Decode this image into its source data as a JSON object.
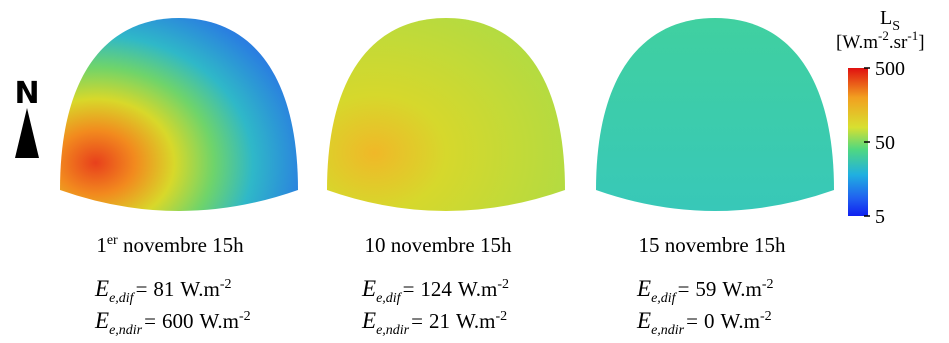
{
  "compass": "N",
  "colorbar": {
    "symbol": "L",
    "symbol_subscript": "S",
    "unit_open": "[W.m",
    "unit_exp1": "-2",
    "unit_mid": ".sr",
    "unit_exp2": "-1",
    "unit_close": "]",
    "log_scale": true,
    "lim": [
      5,
      500
    ],
    "ticks": [
      5,
      50,
      500
    ]
  },
  "panels": [
    {
      "caption_number": "1",
      "caption_sup": "er",
      "caption": "novembre 15h",
      "rows": [
        {
          "symbol": "E",
          "subscript": "e,dif",
          "sign": "=",
          "value": 81,
          "unit": "W.m",
          "unit_exp": "-2"
        },
        {
          "symbol": "E",
          "subscript": "e,ndir",
          "sign": "=",
          "value": 600,
          "unit": "W.m",
          "unit_exp": "-2"
        }
      ]
    },
    {
      "caption": "10 novembre 15h",
      "rows": [
        {
          "symbol": "E",
          "subscript": "e,dif",
          "sign": "=",
          "value": 124,
          "unit": "W.m",
          "unit_exp": "-2"
        },
        {
          "symbol": "E",
          "subscript": "e,ndir",
          "sign": "=",
          "value": 21,
          "unit": "W.m",
          "unit_exp": "-2"
        }
      ]
    },
    {
      "caption": "15 novembre 15h",
      "rows": [
        {
          "symbol": "E",
          "subscript": "e,dif",
          "sign": "=",
          "value": 59,
          "unit": "W.m",
          "unit_exp": "-2"
        },
        {
          "symbol": "E",
          "subscript": "e,ndir",
          "sign": "=",
          "value": 0,
          "unit": "W.m",
          "unit_exp": "-2"
        }
      ]
    }
  ]
}
